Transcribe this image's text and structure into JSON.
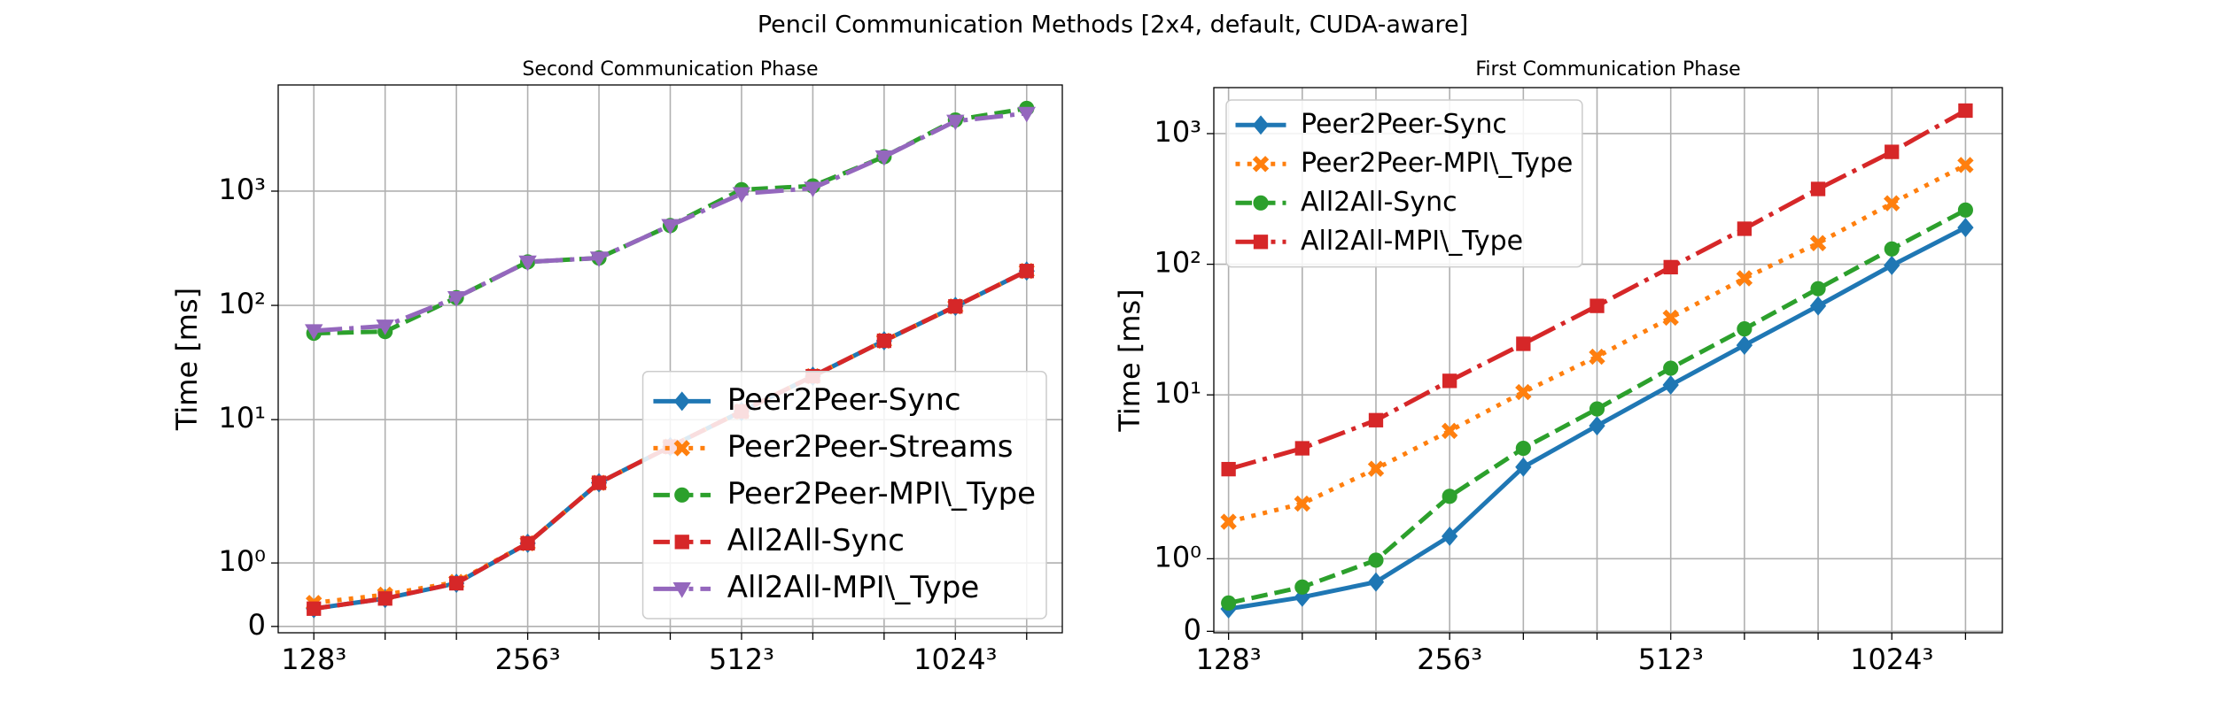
{
  "title": "Pencil Communication Methods [2x4, default, CUDA-aware]",
  "chart_data": [
    {
      "type": "line",
      "title": "Second Communication Phase",
      "ylabel": "Time [ms]",
      "categories": [
        "128³",
        null,
        null,
        "256³",
        null,
        null,
        "512³",
        null,
        null,
        "1024³",
        null
      ],
      "xlim": [
        -0.5,
        10.5
      ],
      "ylim": [
        -0.1,
        8500
      ],
      "yscale": "symlog",
      "linthresh": 2,
      "linscale": 1,
      "yticks": [
        0,
        {
          "value": 1,
          "label": "10⁰"
        },
        {
          "value": 10,
          "label": "10¹"
        },
        {
          "value": 100,
          "label": "10²"
        },
        {
          "value": 1000,
          "label": "10³"
        }
      ],
      "grid": true,
      "legend": "lower right",
      "series": [
        {
          "name": "Peer2Peer-Sync",
          "color": "#1f77b4",
          "linestyle": "solid",
          "marker": "diamond",
          "values": [
            0.28,
            0.44,
            0.68,
            1.31,
            2.8,
            5.8,
            11.8,
            24,
            49,
            98,
            200
          ]
        },
        {
          "name": "Peer2Peer-Streams",
          "color": "#ff7f0e",
          "linestyle": "dotted",
          "marker": "x",
          "values": [
            0.37,
            0.5,
            0.7,
            1.31,
            2.8,
            5.8,
            11.8,
            24,
            49,
            98,
            200
          ]
        },
        {
          "name": "Peer2Peer-MPI\\_Type",
          "color": "#2ca02c",
          "linestyle": "dashed",
          "marker": "circle",
          "values": [
            57,
            59,
            117,
            240,
            260,
            500,
            1030,
            1110,
            2000,
            4200,
            5300
          ]
        },
        {
          "name": "All2All-Sync",
          "color": "#d62728",
          "linestyle": "dashed",
          "marker": "square",
          "values": [
            0.28,
            0.44,
            0.68,
            1.31,
            2.8,
            5.8,
            11.8,
            24,
            49,
            98,
            200
          ]
        },
        {
          "name": "All2All-MPI\\_Type",
          "color": "#9467bd",
          "linestyle": "dashdot",
          "marker": "triangle-down",
          "values": [
            60,
            66,
            117,
            240,
            260,
            500,
            950,
            1060,
            2000,
            4100,
            4800
          ]
        }
      ]
    },
    {
      "type": "line",
      "title": "First Communication Phase",
      "ylabel": "Time [ms]",
      "categories": [
        "128³",
        null,
        null,
        "256³",
        null,
        null,
        "512³",
        null,
        null,
        "1024³",
        null
      ],
      "xlim": [
        -0.2,
        10.5
      ],
      "ylim": [
        -0.02,
        2250
      ],
      "yscale": "symlog",
      "linthresh": 2,
      "linscale": 1,
      "yticks": [
        0,
        {
          "value": 1,
          "label": "10⁰"
        },
        {
          "value": 10,
          "label": "10¹"
        },
        {
          "value": 100,
          "label": "10²"
        },
        {
          "value": 1000,
          "label": "10³"
        }
      ],
      "grid": true,
      "legend": "upper left",
      "series": [
        {
          "name": "Peer2Peer-Sync",
          "color": "#1f77b4",
          "linestyle": "solid",
          "marker": "diamond",
          "values": [
            0.31,
            0.47,
            0.68,
            1.31,
            2.8,
            5.8,
            11.9,
            24,
            48,
            98,
            191
          ]
        },
        {
          "name": "Peer2Peer-MPI\\_Type",
          "color": "#ff7f0e",
          "linestyle": "dotted",
          "marker": "x",
          "values": [
            1.51,
            1.76,
            2.72,
            5.3,
            10.5,
            19.6,
            39,
            78,
            145,
            293,
            575
          ]
        },
        {
          "name": "All2All-Sync",
          "color": "#2ca02c",
          "linestyle": "dashed",
          "marker": "circle",
          "values": [
            0.39,
            0.61,
            0.98,
            1.86,
            3.9,
            7.8,
            16,
            32,
            65,
            131,
            260
          ]
        },
        {
          "name": "All2All-MPI\\_Type",
          "color": "#d62728",
          "linestyle": "dashdot",
          "marker": "square",
          "values": [
            2.7,
            3.9,
            6.4,
            12.8,
            24.6,
            48,
            95,
            187,
            377,
            725,
            1500
          ]
        }
      ]
    }
  ]
}
